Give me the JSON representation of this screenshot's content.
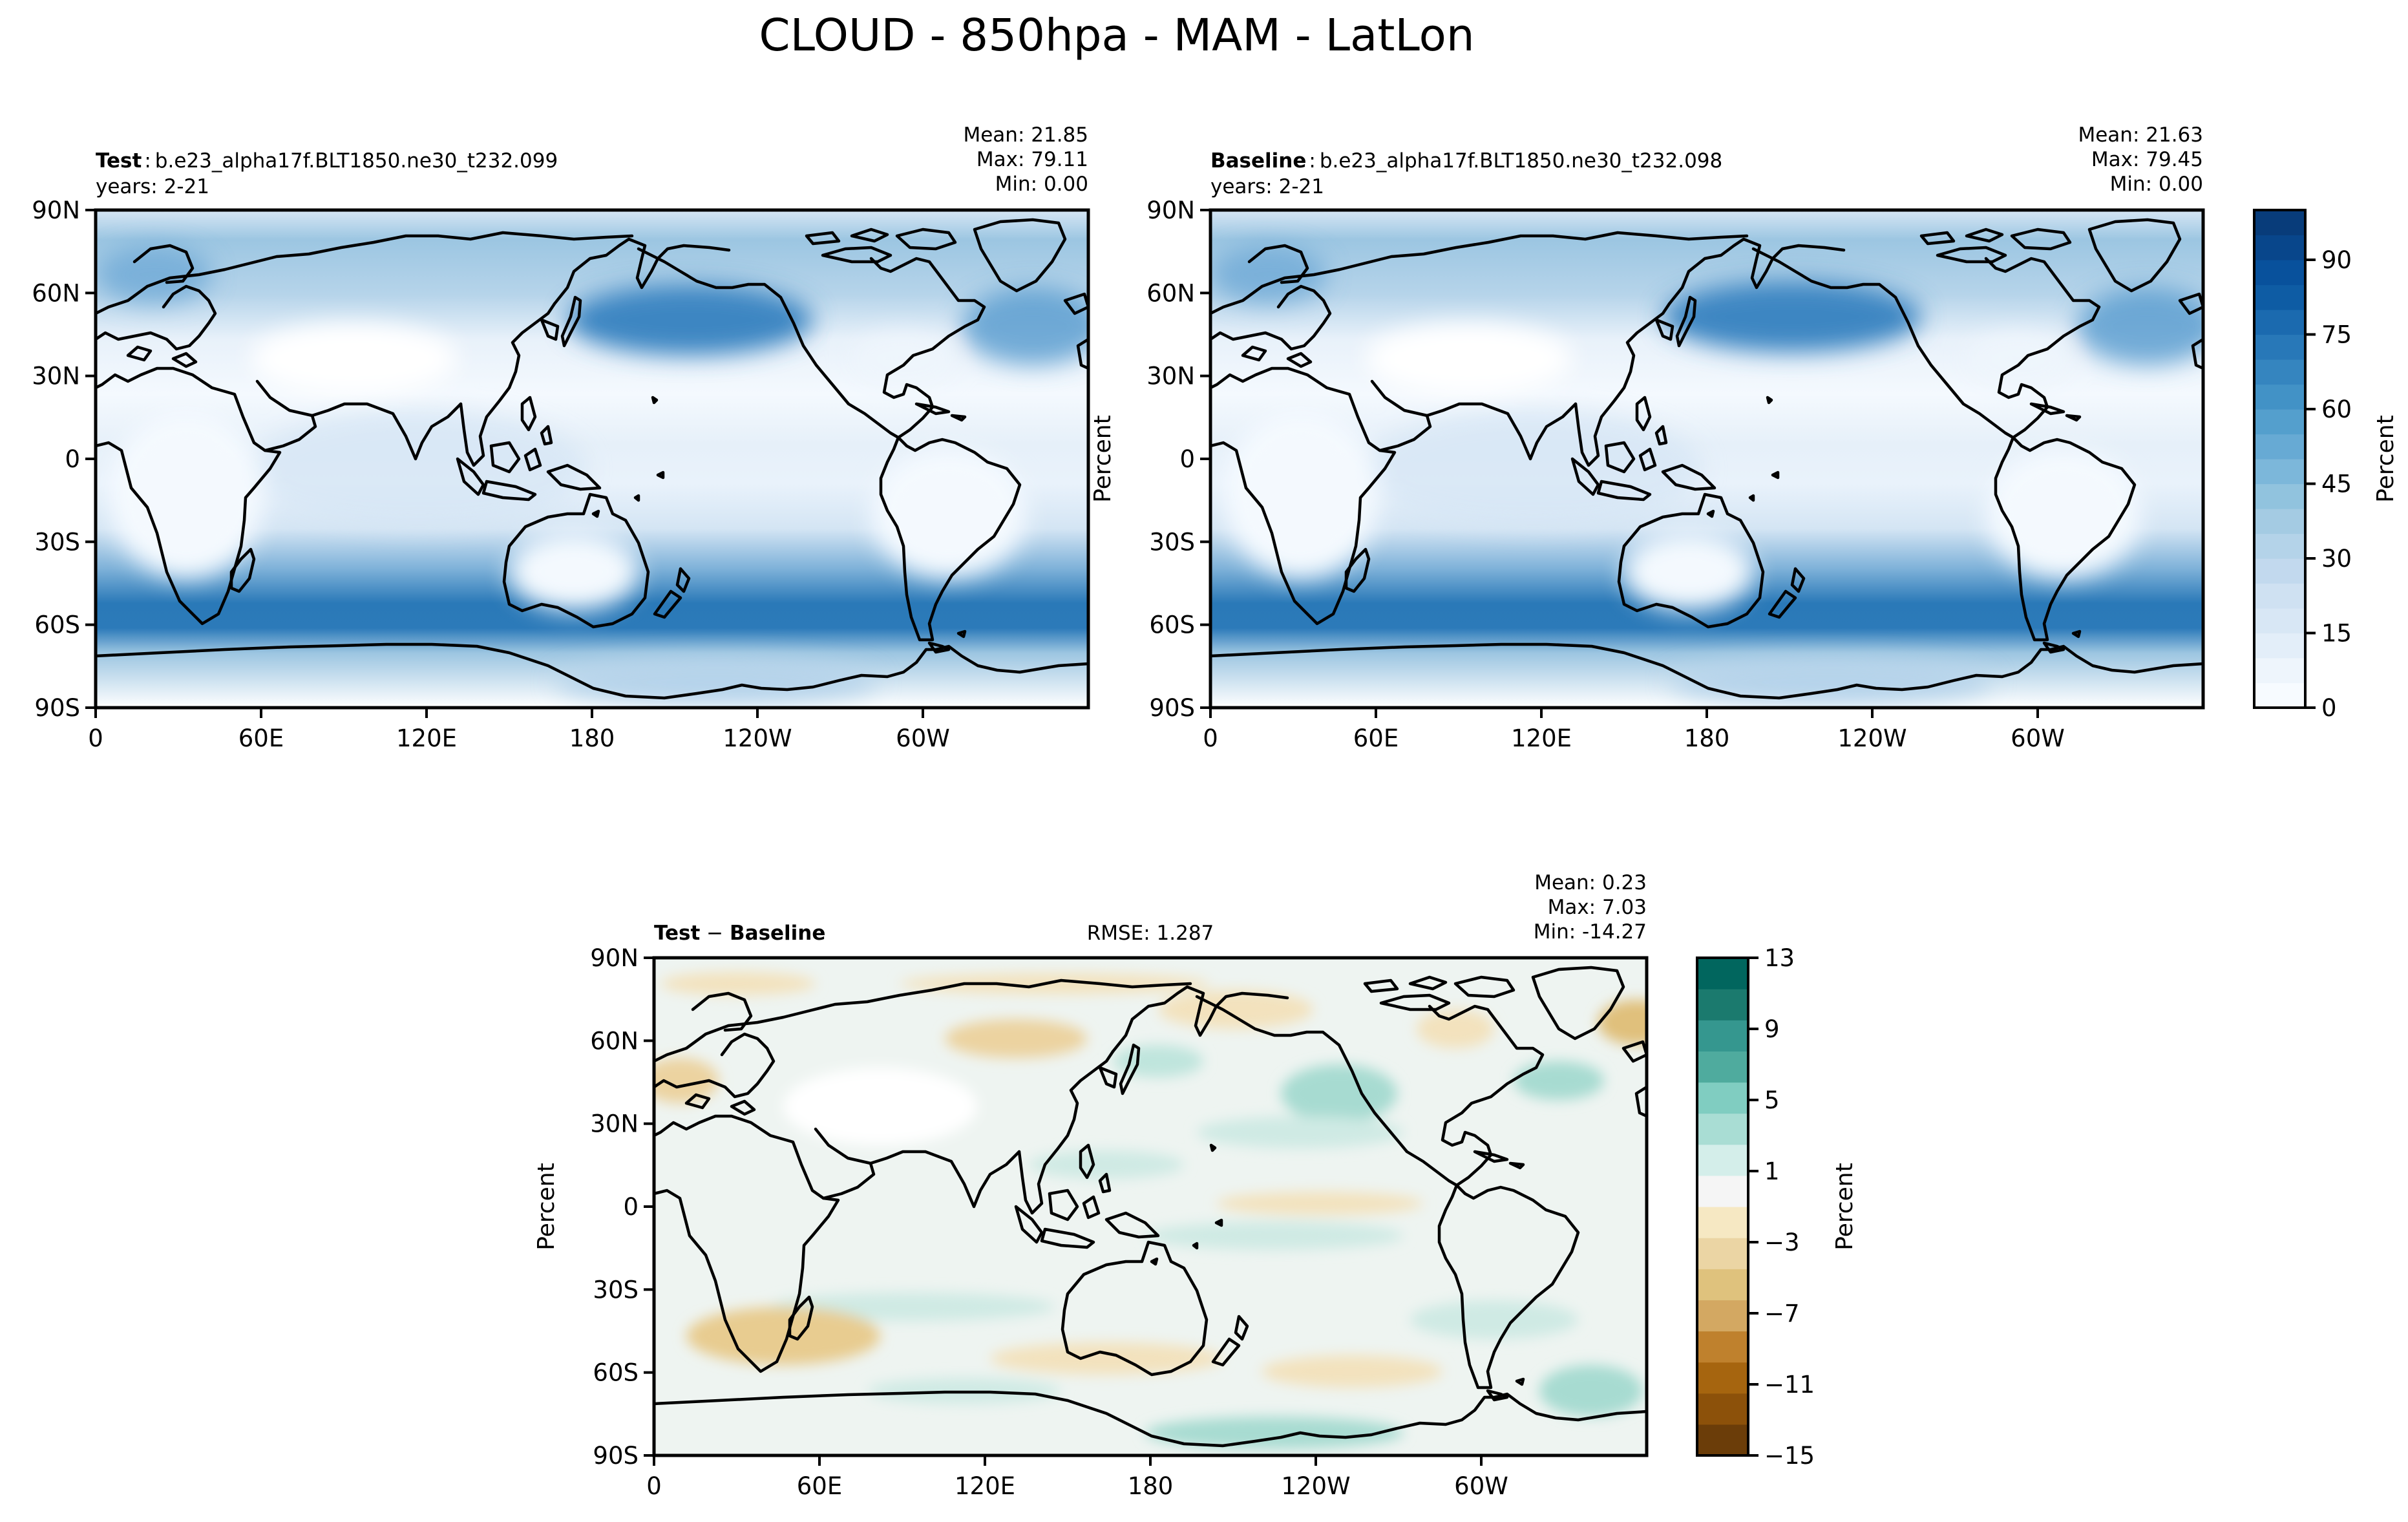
{
  "figure_title": "CLOUD - 850hpa - MAM - LatLon",
  "panels": {
    "test": {
      "label_bold": "Test",
      "label_sep": ":",
      "case": "b.e23_alpha17f.BLT1850.ne30_t232.099",
      "years": "years: 2-21",
      "stats": [
        "Mean: 21.85",
        "Max: 79.11",
        "Min:  0.00"
      ]
    },
    "baseline": {
      "label_bold": "Baseline",
      "label_sep": ":",
      "case": "b.e23_alpha17f.BLT1850.ne30_t232.098",
      "years": "years: 2-21",
      "ylabel": "Percent",
      "stats": [
        "Mean: 21.63",
        "Max: 79.45",
        "Min:  0.00"
      ]
    },
    "diff": {
      "label_a": "Test",
      "label_sep": " − ",
      "label_b": "Baseline",
      "rmse": "RMSE: 1.287",
      "ylabel": "Percent",
      "stats": [
        "Mean:  0.23",
        "Max:  7.03",
        "Min: -14.27"
      ]
    }
  },
  "colorbars": {
    "top": {
      "label": "Percent",
      "ticks": [
        "0",
        "15",
        "30",
        "45",
        "60",
        "75",
        "90"
      ],
      "colors": [
        "#f7fbff",
        "#eef5fc",
        "#e3eef9",
        "#d8e7f5",
        "#cfe1f2",
        "#c2d9ee",
        "#b4d3e9",
        "#a4cbe3",
        "#91c3de",
        "#7cb7da",
        "#67aad4",
        "#549fcd",
        "#4292c6",
        "#3585bf",
        "#2878b8",
        "#1b6aaf",
        "#0e5ca4",
        "#08519c",
        "#08468b",
        "#083c7a"
      ]
    },
    "diff": {
      "label": "Percent",
      "ticks": [
        "−15",
        "−11",
        "−7",
        "−3",
        "1",
        "5",
        "9",
        "13"
      ],
      "colors": [
        "#6b3d09",
        "#8c510a",
        "#a6650f",
        "#bf812d",
        "#d3a862",
        "#dfc27d",
        "#ebd5a4",
        "#f6e8c3",
        "#f5f5f5",
        "#d4eeea",
        "#a9ddd4",
        "#80cdc1",
        "#4fab9e",
        "#35978f",
        "#1b7a6e",
        "#01665e"
      ]
    }
  },
  "map_axes": {
    "lat_ticks": [
      "90N",
      "60N",
      "30N",
      "0",
      "30S",
      "60S",
      "90S"
    ],
    "lon_ticks": [
      "0",
      "60E",
      "120E",
      "180",
      "120W",
      "60W"
    ]
  },
  "chart_data": [
    {
      "type": "heatmap",
      "title": "Test",
      "subtitle": "b.e23_alpha17f.BLT1850.ne30_t232.099",
      "variable": "CLOUD",
      "projection": "PlateCarree, central longitude 180",
      "x_ticks": [
        "0",
        "60E",
        "120E",
        "180",
        "120W",
        "60W"
      ],
      "y_ticks": [
        "90N",
        "60N",
        "30N",
        "0",
        "30S",
        "60S",
        "90S"
      ],
      "stats": {
        "mean": 21.85,
        "max": 79.11,
        "min": 0.0
      },
      "colorbar": {
        "label": "Percent",
        "range": [
          0,
          100
        ],
        "ticks": [
          0,
          15,
          30,
          45,
          60,
          75,
          90
        ],
        "colormap": "Blues"
      }
    },
    {
      "type": "heatmap",
      "title": "Baseline",
      "subtitle": "b.e23_alpha17f.BLT1850.ne30_t232.098",
      "ylabel": "Percent",
      "x_ticks": [
        "0",
        "60E",
        "120E",
        "180",
        "120W",
        "60W"
      ],
      "y_ticks": [
        "90N",
        "60N",
        "30N",
        "0",
        "30S",
        "60S",
        "90S"
      ],
      "stats": {
        "mean": 21.63,
        "max": 79.45,
        "min": 0.0
      },
      "colorbar": {
        "label": "Percent",
        "range": [
          0,
          100
        ],
        "ticks": [
          0,
          15,
          30,
          45,
          60,
          75,
          90
        ],
        "colormap": "Blues"
      }
    },
    {
      "type": "heatmap",
      "title": "Test − Baseline",
      "ylabel": "Percent",
      "rmse": 1.287,
      "x_ticks": [
        "0",
        "60E",
        "120E",
        "180",
        "120W",
        "60W"
      ],
      "y_ticks": [
        "90N",
        "60N",
        "30N",
        "0",
        "30S",
        "60S",
        "90S"
      ],
      "stats": {
        "mean": 0.23,
        "max": 7.03,
        "min": -14.27
      },
      "colorbar": {
        "label": "Percent",
        "range": [
          -15,
          13
        ],
        "ticks": [
          -15,
          -11,
          -7,
          -3,
          1,
          5,
          9,
          13
        ],
        "colormap": "BrBG"
      }
    }
  ]
}
